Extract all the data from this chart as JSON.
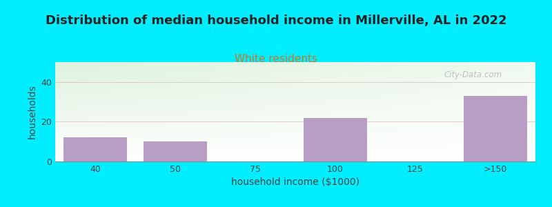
{
  "title": "Distribution of median household income in Millerville, AL in 2022",
  "subtitle": "White residents",
  "subtitle_color": "#cc7722",
  "xlabel": "household income ($1000)",
  "ylabel": "households",
  "categories": [
    "40",
    "50",
    "75",
    "100",
    "125",
    ">150"
  ],
  "values": [
    12,
    10,
    0,
    22,
    0,
    33
  ],
  "bar_color": "#b89ec4",
  "bar_edgecolor": "none",
  "ylim": [
    0,
    50
  ],
  "yticks": [
    0,
    20,
    40
  ],
  "background_color": "#00eeff",
  "plot_bg_color_topleft": "#ddf0dd",
  "plot_bg_color_topright": "#f0f8f0",
  "plot_bg_color_bottom": "#ffffff",
  "title_fontsize": 13,
  "subtitle_fontsize": 11,
  "axis_label_fontsize": 10,
  "tick_fontsize": 9,
  "watermark": "City-Data.com"
}
